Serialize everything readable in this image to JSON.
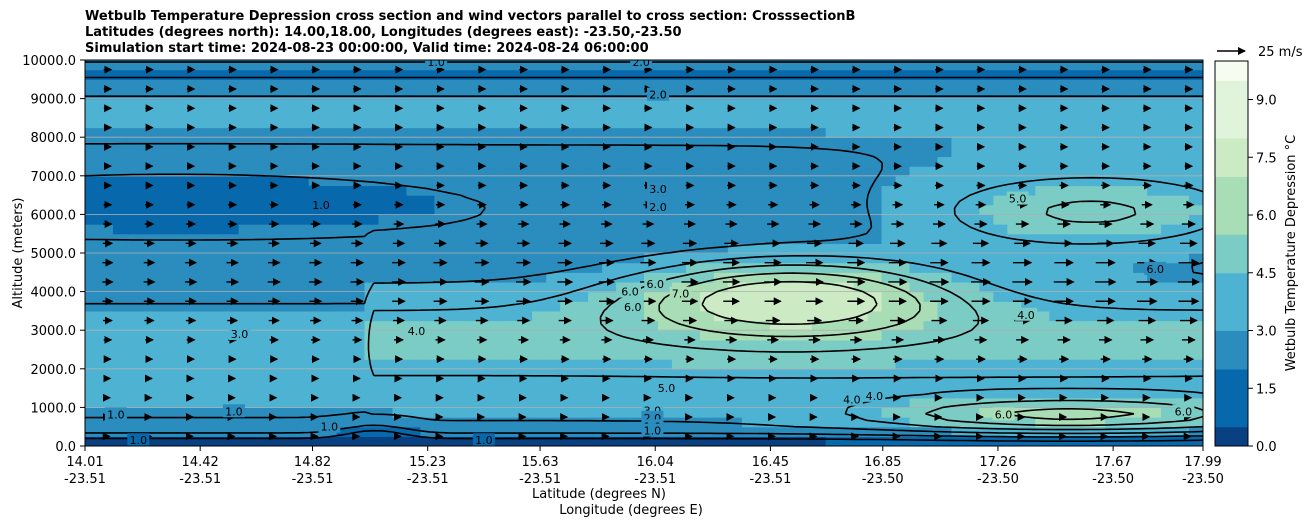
{
  "title_lines": [
    "Wetbulb Temperature Depression cross section and wind vectors parallel to cross section: CrosssectionB",
    "Latitudes (degrees north): 14.00,18.00, Longitudes (degrees east): -23.50,-23.50",
    "Simulation start time: 2024-08-23 00:00:00, Valid time: 2024-08-24 06:00:00"
  ],
  "chart_data": {
    "type": "heatmap",
    "xlabel": "Latitude (degrees N)",
    "xlabel2": "Longitude (degrees E)",
    "ylabel": "Altitude (meters)",
    "ylim": [
      0,
      10000
    ],
    "y_ticks": [
      "0.0",
      "1000.0",
      "2000.0",
      "3000.0",
      "4000.0",
      "5000.0",
      "6000.0",
      "7000.0",
      "8000.0",
      "9000.0",
      "10000.0"
    ],
    "x_ticks": [
      {
        "lat": "14.01",
        "lon": "-23.51"
      },
      {
        "lat": "14.42",
        "lon": "-23.51"
      },
      {
        "lat": "14.82",
        "lon": "-23.51"
      },
      {
        "lat": "15.23",
        "lon": "-23.51"
      },
      {
        "lat": "15.63",
        "lon": "-23.51"
      },
      {
        "lat": "16.04",
        "lon": "-23.51"
      },
      {
        "lat": "16.45",
        "lon": "-23.51"
      },
      {
        "lat": "16.85",
        "lon": "-23.50"
      },
      {
        "lat": "17.26",
        "lon": "-23.50"
      },
      {
        "lat": "17.67",
        "lon": "-23.50"
      },
      {
        "lat": "17.99",
        "lon": "-23.50"
      }
    ],
    "grid": "horizontal",
    "colorbar": {
      "label": "Wetbulb Temperature Depression °C",
      "range": [
        0,
        10
      ],
      "ticks": [
        "0.0",
        "1.5",
        "3.0",
        "4.5",
        "6.0",
        "7.5",
        "9.0"
      ],
      "colors": [
        "#084081",
        "#0868ac",
        "#2b8cbe",
        "#4eb3d3",
        "#7bccc4",
        "#a8ddb5",
        "#ccebc5",
        "#e0f3db",
        "#f7fcf0"
      ]
    },
    "quiver_key": {
      "label": "25 m/s",
      "value": 25
    },
    "contour_labels": [
      {
        "text": "1.0",
        "lat": 15.26,
        "alt": 9950
      },
      {
        "text": "2.0",
        "lat": 15.99,
        "alt": 9950
      },
      {
        "text": "2.0",
        "lat": 16.05,
        "alt": 9100
      },
      {
        "text": "3.0",
        "lat": 16.05,
        "alt": 6660
      },
      {
        "text": "2.0",
        "lat": 16.05,
        "alt": 6190
      },
      {
        "text": "1.0",
        "lat": 14.85,
        "alt": 6250
      },
      {
        "text": "5.0",
        "lat": 17.33,
        "alt": 6410
      },
      {
        "text": "6.0",
        "lat": 17.82,
        "alt": 4590
      },
      {
        "text": "6.0",
        "lat": 15.95,
        "alt": 4000
      },
      {
        "text": "6.0",
        "lat": 16.04,
        "alt": 4200
      },
      {
        "text": "7.0",
        "lat": 16.13,
        "alt": 3950
      },
      {
        "text": "6.0",
        "lat": 15.96,
        "alt": 3600
      },
      {
        "text": "4.0",
        "lat": 17.36,
        "alt": 3400
      },
      {
        "text": "4.0",
        "lat": 15.19,
        "alt": 2980
      },
      {
        "text": "3.0",
        "lat": 14.56,
        "alt": 2900
      },
      {
        "text": "5.0",
        "lat": 16.08,
        "alt": 1500
      },
      {
        "text": "3.0",
        "lat": 16.03,
        "alt": 920
      },
      {
        "text": "2.0",
        "lat": 16.03,
        "alt": 730
      },
      {
        "text": "1.0",
        "lat": 16.03,
        "alt": 510
      },
      {
        "text": "1.0",
        "lat": 16.03,
        "alt": 400
      },
      {
        "text": "4.0",
        "lat": 16.74,
        "alt": 1200
      },
      {
        "text": "4.0",
        "lat": 16.82,
        "alt": 1300
      },
      {
        "text": "6.0",
        "lat": 17.28,
        "alt": 820
      },
      {
        "text": "6.0",
        "lat": 17.92,
        "alt": 900
      },
      {
        "text": "1.0",
        "lat": 14.12,
        "alt": 820
      },
      {
        "text": "1.0",
        "lat": 14.2,
        "alt": 150
      },
      {
        "text": "1.0",
        "lat": 14.88,
        "alt": 500
      },
      {
        "text": "1.0",
        "lat": 14.54,
        "alt": 900
      },
      {
        "text": "1.0",
        "lat": 15.43,
        "alt": 150
      }
    ]
  }
}
